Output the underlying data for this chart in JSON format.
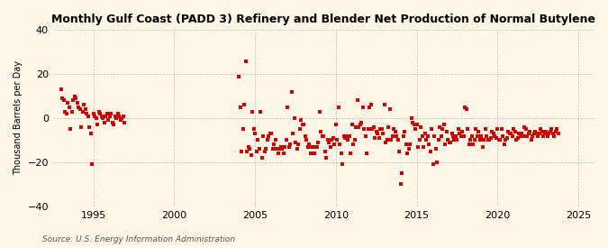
{
  "title": "Monthly Gulf Coast (PADD 3) Refinery and Blender Net Production of Normal Butylene",
  "ylabel": "Thousand Barrels per Day",
  "source": "Source: U.S. Energy Information Administration",
  "background_color": "#fdf5e6",
  "dot_color": "#cc0000",
  "xlim": [
    1992.5,
    2026.0
  ],
  "ylim": [
    -40,
    40
  ],
  "yticks": [
    -40,
    -20,
    0,
    20,
    40
  ],
  "xticks": [
    1995,
    2000,
    2005,
    2010,
    2015,
    2020,
    2025
  ],
  "segment1": {
    "start_year": 1993.0,
    "end_year": 1997.0,
    "months": 48,
    "seed": 42,
    "mean": 3,
    "std": 7,
    "min_val": -21,
    "max_val": 13,
    "values": [
      13,
      9,
      8,
      3,
      2,
      7,
      5,
      -5,
      3,
      8,
      10,
      9,
      7,
      5,
      4,
      -4,
      3,
      6,
      4,
      2,
      1,
      -4,
      -7,
      -21,
      2,
      1,
      0,
      -3,
      3,
      2,
      1,
      0,
      -2,
      1,
      2,
      -1,
      1,
      2,
      -2,
      -3,
      1,
      0,
      2,
      1,
      -1,
      0,
      1,
      -2
    ]
  },
  "segment2": {
    "start_year": 2004.0,
    "end_year": 2025.5,
    "seed": 123,
    "values_compressed": [
      19,
      5,
      -15,
      -5,
      6,
      26,
      -15,
      -13,
      -14,
      -17,
      3,
      -5,
      -7,
      -15,
      -10,
      -14,
      3,
      -18,
      -8,
      -15,
      -14,
      -10,
      -8,
      -7,
      -7,
      -14,
      -12,
      -10,
      -14,
      -16,
      -14,
      -13,
      -14,
      -16,
      -13,
      -10,
      5,
      -13,
      -12,
      12,
      -7,
      0,
      -11,
      -14,
      -12,
      -5,
      -1,
      -3,
      -3,
      -8,
      -10,
      -13,
      -12,
      -16,
      -13,
      -13,
      -16,
      -13,
      -13,
      -11,
      3,
      -6,
      -8,
      -8,
      -15,
      -18,
      -10,
      -11,
      -13,
      -10,
      -9,
      -12,
      -3,
      -10,
      5,
      -12,
      -16,
      -21,
      -8,
      -9,
      -8,
      -10,
      -8,
      -16,
      -3,
      -12,
      -10,
      -4,
      8,
      -4,
      -3,
      -2,
      5,
      -5,
      -8,
      -16,
      -5,
      5,
      6,
      -5,
      -4,
      -9,
      -6,
      -7,
      -9,
      -5,
      -5,
      -7,
      6,
      -11,
      -10,
      -4,
      4,
      -10,
      -8,
      -5,
      -6,
      -8,
      -10,
      -15,
      -30,
      -25,
      -8,
      -6,
      -12,
      -16,
      -14,
      -12,
      0,
      -2,
      -3,
      -5,
      -3,
      -13,
      -10,
      -4,
      -8,
      -13,
      -7,
      -10,
      -8,
      -12,
      -15,
      -5,
      -21,
      -8,
      -14,
      -20,
      -10,
      -4,
      -8,
      -5,
      -3,
      -12,
      -6,
      -10,
      -11,
      -11,
      -7,
      -8,
      -10,
      -8,
      -10,
      -5,
      -7,
      -8,
      -6,
      -8,
      5,
      4,
      -5,
      -12,
      -10,
      -8,
      -12,
      -10,
      -5,
      -8,
      -6,
      -10,
      -8,
      -13,
      -10,
      -5,
      -8,
      -10,
      -10,
      -9,
      -6,
      -7,
      -8,
      -9,
      -5,
      -10,
      -10,
      -5,
      -8,
      -12,
      -10,
      -9,
      -6,
      -7,
      -7,
      -8,
      -5,
      -6,
      -10,
      -9,
      -7,
      -8,
      -7,
      -8,
      -4,
      -5,
      -8,
      -7,
      -6,
      -10,
      -8,
      -7,
      -6,
      -7,
      -8,
      -7,
      -5,
      -6,
      -8,
      -7,
      -6,
      -8,
      -7,
      -6,
      -5,
      -7,
      -8,
      -6,
      -5,
      -7
    ]
  }
}
